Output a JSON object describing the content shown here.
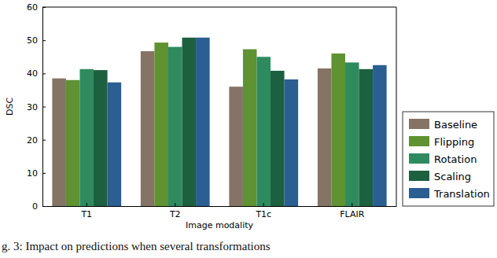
{
  "chart_data": {
    "type": "bar",
    "categories": [
      "T1",
      "T2",
      "T1c",
      "FLAIR"
    ],
    "x_label": "Image modality",
    "y_label": "DSC",
    "series": [
      {
        "name": "Baseline",
        "color": "#857365",
        "values": [
          38.5,
          46.7,
          36.0,
          41.5
        ]
      },
      {
        "name": "Flipping",
        "color": "#5f9230",
        "values": [
          38.0,
          49.3,
          47.3,
          46.0
        ]
      },
      {
        "name": "Rotation",
        "color": "#2f8b5f",
        "values": [
          41.3,
          48.0,
          45.0,
          43.3
        ]
      },
      {
        "name": "Scaling",
        "color": "#1d6040",
        "values": [
          41.0,
          50.8,
          40.8,
          41.3
        ]
      },
      {
        "name": "Translation",
        "color": "#2b5e91",
        "values": [
          37.3,
          50.8,
          38.2,
          42.5
        ]
      }
    ],
    "ylim": [
      0,
      60
    ],
    "yticks": [
      0,
      10,
      20,
      30,
      40,
      50,
      60
    ],
    "grid": false,
    "legend": "lower right",
    "annotations": [
      "g. 3: Impact on predictions when several transformations"
    ]
  }
}
